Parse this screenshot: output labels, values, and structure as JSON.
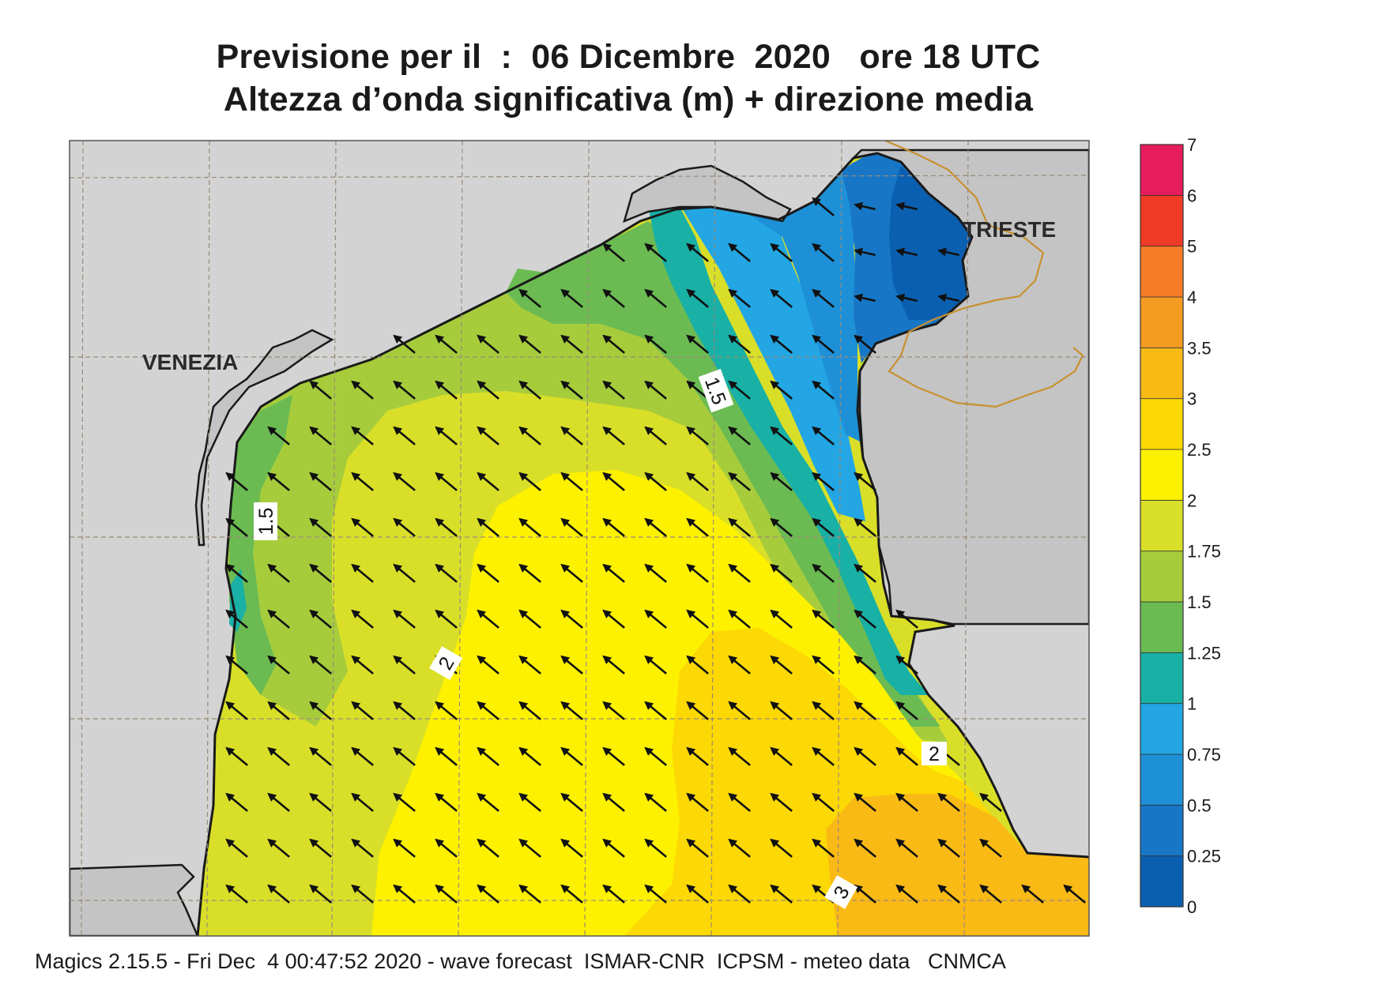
{
  "title": {
    "line1": "Previsione per il  :  06 Dicembre  2020   ore 18 UTC",
    "line2": "Altezza d’onda significativa (m) + direzione media"
  },
  "footer": "Magics 2.15.5 - Fri Dec  4 00:47:52 2020 - wave forecast  ISMAR-CNR  ICPSM - meteo data   CNMCA",
  "cities": [
    "VENEZIA",
    "TRIESTE"
  ],
  "contour_labels": [
    "1.5",
    "1.5",
    "2",
    "2",
    "3"
  ],
  "colorbar": {
    "levels": [
      "0",
      "0.25",
      "0.5",
      "0.75",
      "1",
      "1.25",
      "1.5",
      "1.75",
      "2",
      "2.5",
      "3",
      "3.5",
      "4",
      "5",
      "6",
      "7"
    ],
    "colors": [
      "#0b5fb0",
      "#1777c6",
      "#1e90d8",
      "#23a6e3",
      "#19b0a6",
      "#6bbb52",
      "#a6cc3c",
      "#d9df28",
      "#fdf100",
      "#fcd804",
      "#f9ba16",
      "#f69b22",
      "#f57d25",
      "#ef3a25",
      "#e61c5c"
    ]
  },
  "colors": {
    "land": "#d3d3d3",
    "grid": "#9a8a78",
    "arrow": "#111111",
    "border": "#c8902e"
  },
  "arrow_direction": "toward north-west (mean wave direction)"
}
